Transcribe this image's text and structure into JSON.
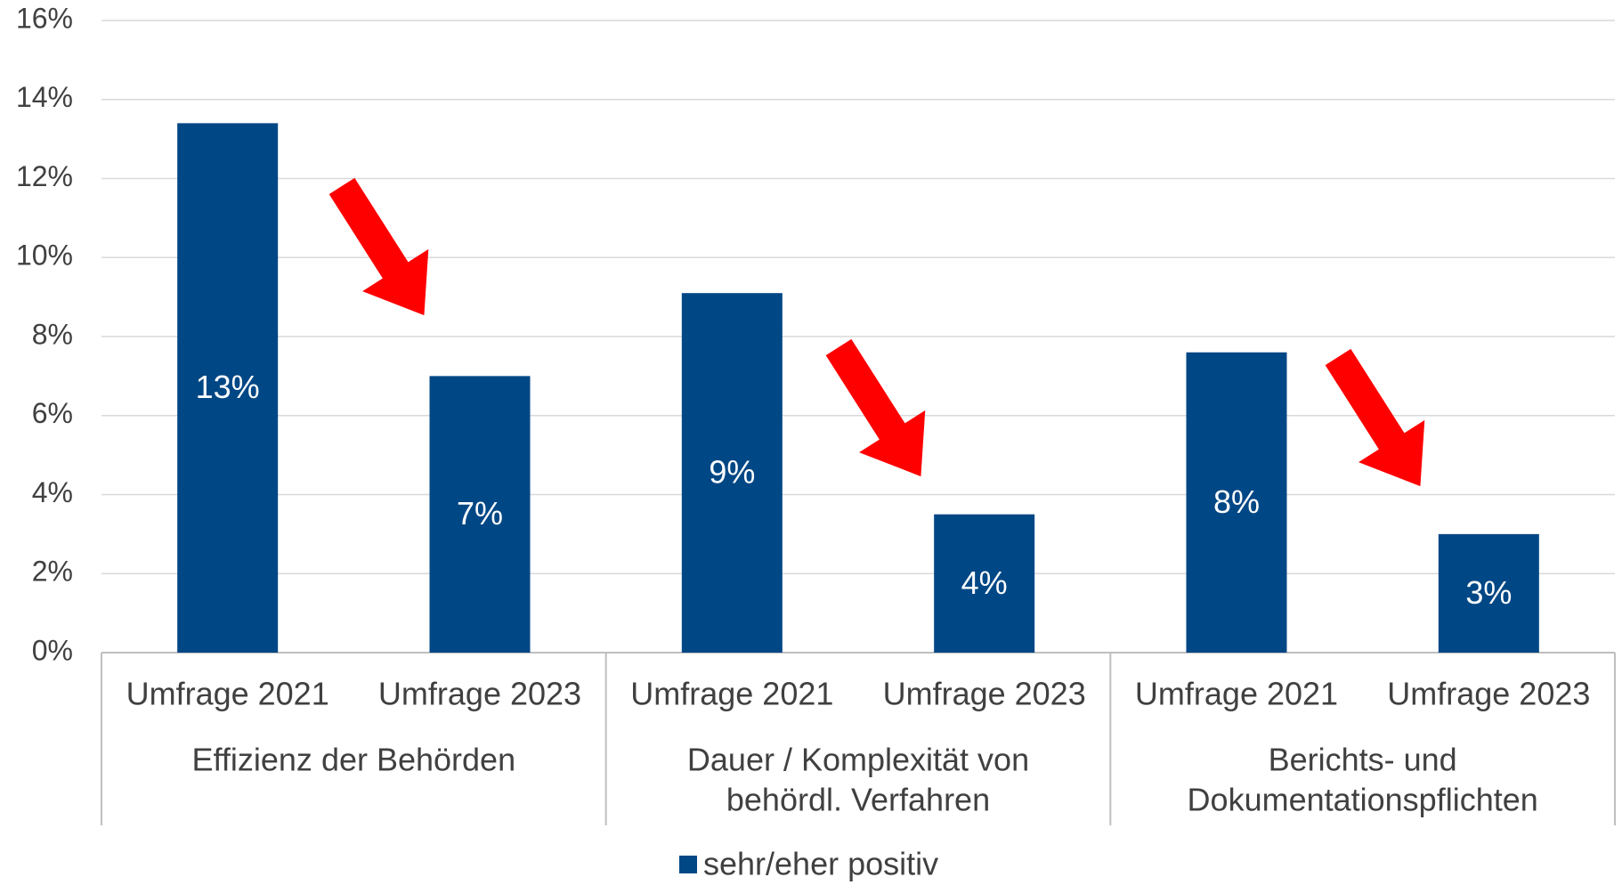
{
  "chart_data": {
    "type": "bar",
    "categories": [
      "Umfrage 2021",
      "Umfrage 2023",
      "Umfrage 2021",
      "Umfrage 2023",
      "Umfrage 2021",
      "Umfrage 2023"
    ],
    "groups": [
      [
        "Effizienz der Behörden"
      ],
      [
        "Dauer / Komplexität von",
        "behördl. Verfahren"
      ],
      [
        "Berichts- und",
        "Dokumentationspflichten"
      ]
    ],
    "series": [
      {
        "name": "sehr/eher positiv",
        "color": "#004785",
        "values": [
          13.4,
          7.0,
          9.1,
          3.5,
          7.6,
          3.0
        ],
        "value_labels": [
          "13%",
          "7%",
          "9%",
          "4%",
          "8%",
          "3%"
        ]
      }
    ],
    "ylim": [
      0,
      16
    ],
    "yticks": [
      {
        "value": 0,
        "label": "0%"
      },
      {
        "value": 2,
        "label": "2%"
      },
      {
        "value": 4,
        "label": "4%"
      },
      {
        "value": 6,
        "label": "6%"
      },
      {
        "value": 8,
        "label": "8%"
      },
      {
        "value": 10,
        "label": "10%"
      },
      {
        "value": 12,
        "label": "12%"
      },
      {
        "value": 14,
        "label": "14%"
      },
      {
        "value": 16,
        "label": "16%"
      }
    ],
    "grid": true
  }
}
